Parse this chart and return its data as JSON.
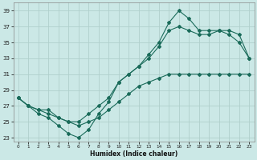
{
  "xlabel": "Humidex (Indice chaleur)",
  "bg_color": "#cbe8e6",
  "grid_color": "#b0d0cc",
  "line_color": "#1a6b5a",
  "xlim": [
    -0.5,
    23.5
  ],
  "ylim": [
    22.5,
    40.0
  ],
  "xticks": [
    0,
    1,
    2,
    3,
    4,
    5,
    6,
    7,
    8,
    9,
    10,
    11,
    12,
    13,
    14,
    15,
    16,
    17,
    18,
    19,
    20,
    21,
    22,
    23
  ],
  "yticks": [
    23,
    25,
    27,
    29,
    31,
    33,
    35,
    37,
    39
  ],
  "line1_x": [
    0,
    1,
    2,
    3,
    4,
    5,
    6,
    7,
    8,
    9,
    10,
    11,
    12,
    13,
    14,
    15,
    16,
    17,
    18,
    19,
    20,
    21,
    22,
    23
  ],
  "line1_y": [
    28,
    27,
    26.5,
    26.5,
    25.5,
    25,
    24.5,
    25,
    25.5,
    26.5,
    27.5,
    28.5,
    29.5,
    30,
    30.5,
    31,
    31,
    31,
    31,
    31,
    31,
    31,
    31,
    31
  ],
  "line2_x": [
    0,
    1,
    2,
    3,
    4,
    5,
    6,
    7,
    8,
    9,
    10,
    11,
    12,
    13,
    14,
    15,
    16,
    17,
    18,
    19,
    20,
    21,
    22,
    23
  ],
  "line2_y": [
    28,
    27,
    26,
    25.5,
    24.5,
    23.5,
    23,
    24,
    26,
    27.5,
    30,
    31,
    32,
    33.5,
    35,
    37.5,
    39,
    38,
    36.5,
    36.5,
    36.5,
    36,
    35,
    33
  ],
  "line3_x": [
    0,
    1,
    2,
    3,
    4,
    5,
    6,
    7,
    8,
    9,
    10,
    11,
    12,
    13,
    14,
    15,
    16,
    17,
    18,
    19,
    20,
    21,
    22,
    23
  ],
  "line3_y": [
    28,
    27,
    26.5,
    26,
    25.5,
    25,
    25,
    26,
    27,
    28,
    30,
    31,
    32,
    33,
    34.5,
    36.5,
    37,
    36.5,
    36,
    36,
    36.5,
    36.5,
    36,
    33
  ]
}
